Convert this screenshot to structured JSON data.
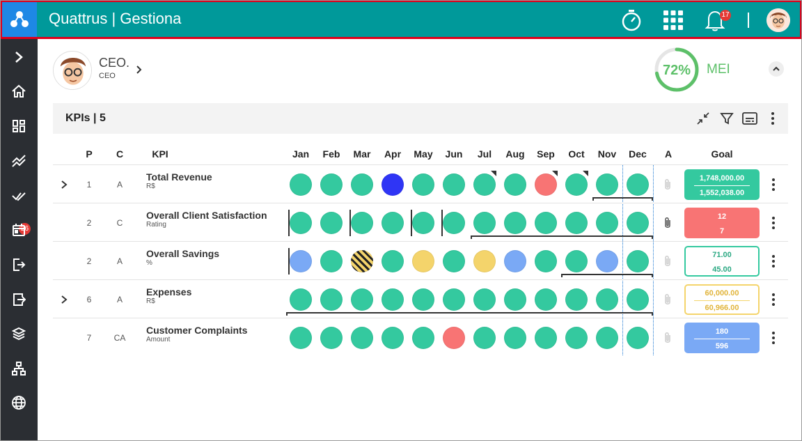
{
  "header": {
    "app_title": "Quattrus | Gestiona",
    "notifications_count": "17",
    "colors": {
      "bar": "#00999a",
      "logo_bg": "#1e88e5",
      "highlight_border": "#e0001b"
    }
  },
  "sidebar": {
    "items": [
      "expand-icon",
      "home-icon",
      "dashboard-icon",
      "trending-icon",
      "tasks-icon",
      "calendar-icon",
      "logout-icon",
      "export-icon",
      "layers-icon",
      "org-chart-icon",
      "globe-icon"
    ],
    "tasks_badge": "26"
  },
  "profile": {
    "name": "CEO.",
    "role": "CEO"
  },
  "mei": {
    "percent_text": "72%",
    "percent": 72,
    "label": "MEI"
  },
  "kpis": {
    "title": "KPIs | 5",
    "columns": {
      "p": "P",
      "c": "C",
      "kpi": "KPI",
      "months": [
        "Jan",
        "Feb",
        "Mar",
        "Apr",
        "May",
        "Jun",
        "Jul",
        "Aug",
        "Sep",
        "Oct",
        "Nov",
        "Dec"
      ],
      "a": "A",
      "goal": "Goal"
    },
    "status_colors": {
      "green": "#34c99f",
      "blue": "#2f35f5",
      "red": "#f87474",
      "lightblue": "#7aa9f5",
      "yellow": "#f4d46b",
      "striped": "striped"
    },
    "rows": [
      {
        "expandable": true,
        "p": "1",
        "c": "A",
        "name": "Total Revenue",
        "unit": "R$",
        "months": [
          "green",
          "green",
          "green",
          "blue",
          "green",
          "green",
          "green",
          "green",
          "red",
          "green",
          "green",
          "green"
        ],
        "goal": {
          "top": "1,748,000.00",
          "bottom": "1,552,038.00",
          "style": "green"
        }
      },
      {
        "expandable": false,
        "p": "2",
        "c": "C",
        "name": "Overall Client Satisfaction",
        "unit": "Rating",
        "months": [
          "green",
          "green",
          "green",
          "green",
          "green",
          "green",
          "green",
          "green",
          "green",
          "green",
          "green",
          "green"
        ],
        "goal": {
          "top": "12",
          "bottom": "7",
          "style": "red"
        }
      },
      {
        "expandable": false,
        "p": "2",
        "c": "A",
        "name": "Overall Savings",
        "unit": "%",
        "months": [
          "lightblue",
          "green",
          "striped",
          "green",
          "yellow",
          "green",
          "yellow",
          "lightblue",
          "green",
          "green",
          "lightblue",
          "green"
        ],
        "goal": {
          "top": "71.00",
          "bottom": "45.00",
          "style": "outline-green"
        }
      },
      {
        "expandable": true,
        "p": "6",
        "c": "A",
        "name": "Expenses",
        "unit": "R$",
        "months": [
          "green",
          "green",
          "green",
          "green",
          "green",
          "green",
          "green",
          "green",
          "green",
          "green",
          "green",
          "green"
        ],
        "goal": {
          "top": "60,000.00",
          "bottom": "60,966.00",
          "style": "outline-yellow"
        }
      },
      {
        "expandable": false,
        "p": "7",
        "c": "CA",
        "name": "Customer Complaints",
        "unit": "Amount",
        "months": [
          "green",
          "green",
          "green",
          "green",
          "green",
          "red",
          "green",
          "green",
          "green",
          "green",
          "green",
          "green"
        ],
        "goal": {
          "top": "180",
          "bottom": "596",
          "style": "lightblue"
        }
      }
    ]
  }
}
